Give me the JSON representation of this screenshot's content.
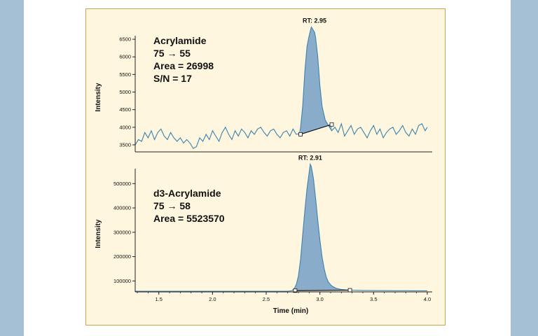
{
  "colors": {
    "side_band": "#a5bfd4",
    "panel_fill": "#fef6de",
    "panel_border": "#c9a44a",
    "trace": "#3c83ad",
    "peak_fill": "#8aaccb",
    "axis": "#222222"
  },
  "chart_data": [
    {
      "type": "line",
      "ylabel": "Intensity",
      "ylim": [
        3300,
        6800
      ],
      "xlim": [
        1.28,
        4.02
      ],
      "yticks": [
        3500,
        4000,
        4500,
        5000,
        5500,
        6000,
        6500
      ],
      "annotation_lines": [
        "Acrylamide",
        "75 → 55",
        "Area = 26998",
        "S/N = 17"
      ],
      "peak": {
        "label": "RT: 2.95",
        "rt": 2.95,
        "apex": 6850,
        "start": 2.82,
        "end": 3.11,
        "base_start": 3800,
        "base_end": 4080
      },
      "series": [
        {
          "x": [
            1.28,
            1.31,
            1.34,
            1.37,
            1.4,
            1.43,
            1.46,
            1.49,
            1.52,
            1.55,
            1.58,
            1.61,
            1.64,
            1.67,
            1.7,
            1.73,
            1.76,
            1.79,
            1.82,
            1.85,
            1.88,
            1.91,
            1.94,
            1.97,
            2.0,
            2.03,
            2.06,
            2.09,
            2.12,
            2.15,
            2.18,
            2.21,
            2.24,
            2.27,
            2.3,
            2.33,
            2.36,
            2.39,
            2.42,
            2.45,
            2.48,
            2.51,
            2.54,
            2.57,
            2.6,
            2.63,
            2.66,
            2.69,
            2.72,
            2.75,
            2.78,
            2.81,
            2.82,
            2.84,
            2.86,
            2.88,
            2.9,
            2.92,
            2.94,
            2.95,
            2.96,
            2.98,
            3.0,
            3.02,
            3.05,
            3.08,
            3.11,
            3.14,
            3.17,
            3.2,
            3.23,
            3.26,
            3.29,
            3.32,
            3.35,
            3.38,
            3.41,
            3.44,
            3.47,
            3.5,
            3.53,
            3.56,
            3.59,
            3.62,
            3.65,
            3.68,
            3.71,
            3.74,
            3.77,
            3.8,
            3.83,
            3.86,
            3.89,
            3.92,
            3.95,
            3.98,
            4.0
          ],
          "y": [
            3500,
            3650,
            3600,
            3850,
            3700,
            3900,
            3650,
            3850,
            3950,
            3750,
            3650,
            3850,
            3700,
            3600,
            3700,
            3550,
            3650,
            3550,
            3400,
            3450,
            3700,
            3600,
            3800,
            3650,
            3900,
            3750,
            3600,
            3850,
            4000,
            3800,
            3650,
            3900,
            3750,
            3950,
            3850,
            3700,
            3900,
            3800,
            3950,
            4000,
            3850,
            3750,
            3900,
            3950,
            3800,
            3700,
            3850,
            3900,
            3750,
            3950,
            3800,
            3820,
            4000,
            4600,
            5600,
            6300,
            6600,
            6850,
            6750,
            6700,
            6550,
            6000,
            5200,
            4600,
            4200,
            4050,
            3900,
            4000,
            3850,
            4100,
            3750,
            3900,
            4050,
            3800,
            3950,
            4000,
            3850,
            3700,
            3900,
            4050,
            3800,
            3950,
            3700,
            3850,
            3950,
            4000,
            3800,
            3900,
            4050,
            3850,
            3750,
            3950,
            3800,
            4050,
            4100,
            3900,
            4000
          ]
        }
      ]
    },
    {
      "type": "line",
      "xlabel": "Time (min)",
      "ylabel": "Intensity",
      "ylim": [
        55000,
        590000
      ],
      "xlim": [
        1.28,
        4.02
      ],
      "xticks": [
        1.5,
        2.0,
        2.5,
        3.0,
        3.5,
        4.0
      ],
      "yticks": [
        100000,
        200000,
        300000,
        400000,
        500000
      ],
      "annotation_lines": [
        "d3-Acrylamide",
        "75 → 58",
        "Area = 5523570"
      ],
      "peak": {
        "label": "RT: 2.91",
        "rt": 2.91,
        "apex": 580000,
        "start": 2.77,
        "end": 3.28,
        "base_start": 60000,
        "base_end": 62000
      },
      "series": [
        {
          "x": [
            1.28,
            2.7,
            2.74,
            2.76,
            2.78,
            2.8,
            2.82,
            2.84,
            2.86,
            2.88,
            2.9,
            2.91,
            2.92,
            2.94,
            2.96,
            2.98,
            3.0,
            3.02,
            3.04,
            3.06,
            3.08,
            3.1,
            3.12,
            3.15,
            3.2,
            3.25,
            3.3,
            3.4,
            3.5,
            3.6,
            3.7,
            3.8,
            3.9,
            4.0
          ],
          "y": [
            58000,
            58000,
            60000,
            68000,
            85000,
            120000,
            190000,
            290000,
            390000,
            480000,
            545000,
            580000,
            570000,
            520000,
            440000,
            350000,
            270000,
            200000,
            150000,
            115000,
            95000,
            84000,
            77000,
            70000,
            65000,
            63000,
            62000,
            61000,
            60500,
            60200,
            60000,
            59800,
            59600,
            59500
          ]
        }
      ]
    }
  ]
}
